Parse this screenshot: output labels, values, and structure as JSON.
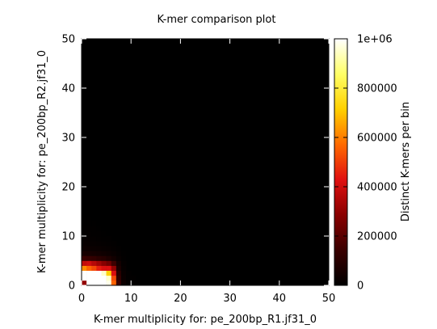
{
  "chart_data": {
    "type": "heatmap",
    "title": "K-mer comparison plot",
    "xlabel": "K-mer multiplicity for: pe_200bp_R1.jf31_0",
    "ylabel": "K-mer multiplicity for: pe_200bp_R2.jf31_0",
    "colorbar_label": "Distinct K-mers per bin",
    "xlim": [
      0,
      50
    ],
    "ylim": [
      0,
      50
    ],
    "x_ticks": [
      "0",
      "10",
      "20",
      "30",
      "40",
      "50"
    ],
    "y_ticks": [
      "0",
      "10",
      "20",
      "30",
      "40",
      "50"
    ],
    "color_range": [
      0,
      1000000
    ],
    "colorbar_ticks": [
      "0",
      "200000",
      "400000",
      "600000",
      "800000",
      "1e+06"
    ],
    "colorbar_tick_values": [
      0,
      200000,
      400000,
      600000,
      800000,
      1000000
    ],
    "colormap_stops": [
      "#000000",
      "#3a0000",
      "#8a0000",
      "#e01010",
      "#ff6a00",
      "#ffd000",
      "#ffff66",
      "#ffffff"
    ],
    "bin_size": 1,
    "cells": [
      [
        0,
        0,
        300000
      ],
      [
        1,
        0,
        1000000
      ],
      [
        2,
        0,
        1000000
      ],
      [
        3,
        0,
        1000000
      ],
      [
        4,
        0,
        1000000
      ],
      [
        5,
        0,
        980000
      ],
      [
        6,
        0,
        560000
      ],
      [
        7,
        0,
        140000
      ],
      [
        8,
        0,
        30000
      ],
      [
        0,
        1,
        1000000
      ],
      [
        1,
        1,
        1000000
      ],
      [
        2,
        1,
        1000000
      ],
      [
        3,
        1,
        1000000
      ],
      [
        4,
        1,
        1000000
      ],
      [
        5,
        1,
        950000
      ],
      [
        6,
        1,
        520000
      ],
      [
        7,
        1,
        120000
      ],
      [
        8,
        1,
        25000
      ],
      [
        0,
        2,
        1000000
      ],
      [
        1,
        2,
        1000000
      ],
      [
        2,
        2,
        1000000
      ],
      [
        3,
        2,
        1000000
      ],
      [
        4,
        2,
        950000
      ],
      [
        5,
        2,
        720000
      ],
      [
        6,
        2,
        420000
      ],
      [
        7,
        2,
        100000
      ],
      [
        8,
        2,
        20000
      ],
      [
        0,
        3,
        620000
      ],
      [
        1,
        3,
        560000
      ],
      [
        2,
        3,
        520000
      ],
      [
        3,
        3,
        450000
      ],
      [
        4,
        3,
        420000
      ],
      [
        5,
        3,
        420000
      ],
      [
        6,
        3,
        300000
      ],
      [
        7,
        3,
        70000
      ],
      [
        8,
        3,
        15000
      ],
      [
        0,
        4,
        380000
      ],
      [
        1,
        4,
        400000
      ],
      [
        2,
        4,
        360000
      ],
      [
        3,
        4,
        320000
      ],
      [
        4,
        4,
        280000
      ],
      [
        5,
        4,
        240000
      ],
      [
        6,
        4,
        150000
      ],
      [
        7,
        4,
        50000
      ],
      [
        8,
        4,
        10000
      ],
      [
        0,
        5,
        140000
      ],
      [
        1,
        5,
        130000
      ],
      [
        2,
        5,
        120000
      ],
      [
        3,
        5,
        100000
      ],
      [
        4,
        5,
        90000
      ],
      [
        5,
        5,
        70000
      ],
      [
        6,
        5,
        45000
      ],
      [
        7,
        5,
        20000
      ],
      [
        8,
        5,
        6000
      ],
      [
        0,
        6,
        60000
      ],
      [
        1,
        6,
        55000
      ],
      [
        2,
        6,
        50000
      ],
      [
        3,
        6,
        45000
      ],
      [
        4,
        6,
        38000
      ],
      [
        5,
        6,
        30000
      ],
      [
        6,
        6,
        20000
      ],
      [
        7,
        6,
        10000
      ],
      [
        8,
        6,
        3000
      ],
      [
        0,
        7,
        30000
      ],
      [
        1,
        7,
        28000
      ],
      [
        2,
        7,
        25000
      ],
      [
        3,
        7,
        22000
      ],
      [
        4,
        7,
        18000
      ],
      [
        5,
        7,
        14000
      ],
      [
        6,
        7,
        9000
      ],
      [
        7,
        7,
        5000
      ],
      [
        0,
        8,
        18000
      ],
      [
        1,
        8,
        16000
      ],
      [
        2,
        8,
        14000
      ],
      [
        3,
        8,
        12000
      ],
      [
        4,
        8,
        10000
      ],
      [
        5,
        8,
        8000
      ],
      [
        6,
        8,
        5000
      ],
      [
        0,
        9,
        12000
      ],
      [
        1,
        9,
        10000
      ],
      [
        2,
        9,
        9000
      ],
      [
        3,
        9,
        7000
      ],
      [
        4,
        9,
        6000
      ],
      [
        5,
        9,
        4000
      ],
      [
        0,
        10,
        8000
      ],
      [
        1,
        10,
        7000
      ],
      [
        2,
        10,
        6000
      ],
      [
        3,
        10,
        5000
      ],
      [
        4,
        10,
        3500
      ],
      [
        0,
        11,
        5000
      ],
      [
        1,
        11,
        4500
      ],
      [
        2,
        11,
        4000
      ],
      [
        3,
        11,
        3000
      ],
      [
        0,
        12,
        3500
      ],
      [
        1,
        12,
        3000
      ],
      [
        2,
        12,
        2500
      ],
      [
        0,
        13,
        2500
      ],
      [
        1,
        13,
        2000
      ],
      [
        9,
        0,
        8000
      ],
      [
        10,
        0,
        5000
      ],
      [
        11,
        0,
        3000
      ],
      [
        9,
        1,
        6000
      ],
      [
        10,
        1,
        4000
      ],
      [
        9,
        2,
        5000
      ]
    ]
  }
}
